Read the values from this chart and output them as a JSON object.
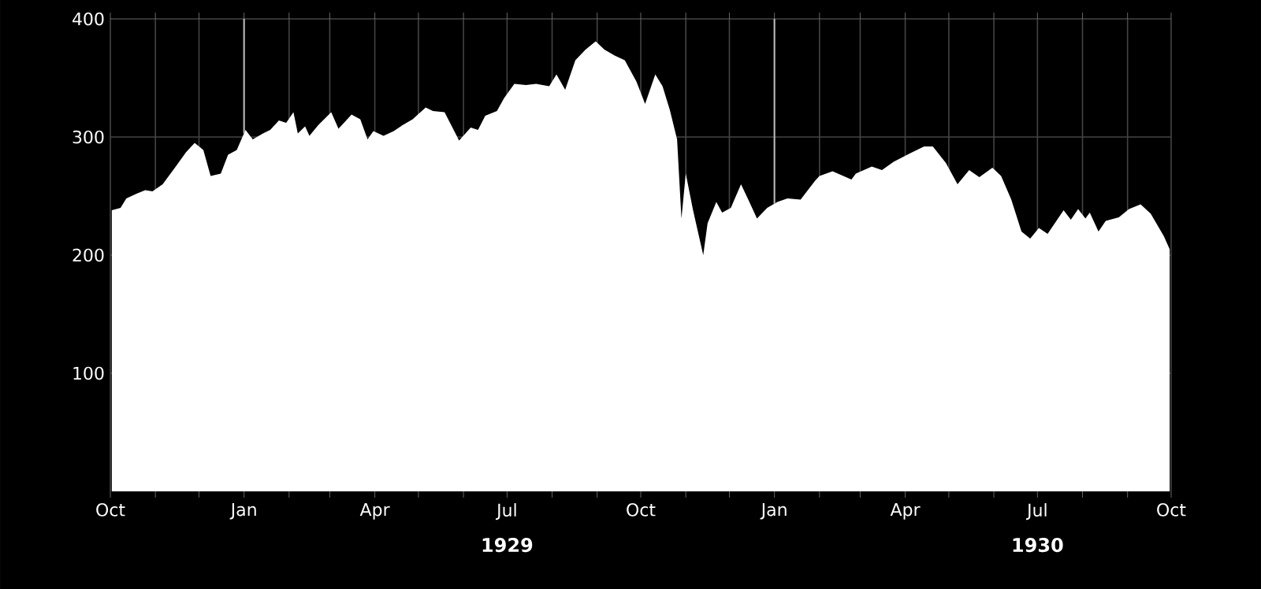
{
  "chart_data": {
    "type": "area",
    "color": "#ffffff",
    "xlim": [
      "1928-10-01",
      "1930-10-01"
    ],
    "ylim": [
      0,
      400
    ],
    "xticks": [
      {
        "value": "1928-10-01",
        "label": "Oct"
      },
      {
        "value": "1928-11-01",
        "label": null
      },
      {
        "value": "1928-12-01",
        "label": null
      },
      {
        "value": "1929-01-01",
        "label": "Jan"
      },
      {
        "value": "1929-02-01",
        "label": null
      },
      {
        "value": "1929-03-01",
        "label": null
      },
      {
        "value": "1929-04-01",
        "label": "Apr"
      },
      {
        "value": "1929-05-01",
        "label": null
      },
      {
        "value": "1929-06-01",
        "label": null
      },
      {
        "value": "1929-07-01",
        "label": "Jul"
      },
      {
        "value": "1929-08-01",
        "label": null
      },
      {
        "value": "1929-09-01",
        "label": null
      },
      {
        "value": "1929-10-01",
        "label": "Oct"
      },
      {
        "value": "1929-11-01",
        "label": null
      },
      {
        "value": "1929-12-01",
        "label": null
      },
      {
        "value": "1930-01-01",
        "label": "Jan"
      },
      {
        "value": "1930-02-01",
        "label": null
      },
      {
        "value": "1930-03-01",
        "label": null
      },
      {
        "value": "1930-04-01",
        "label": "Apr"
      },
      {
        "value": "1930-05-01",
        "label": null
      },
      {
        "value": "1930-06-01",
        "label": null
      },
      {
        "value": "1930-07-01",
        "label": "Jul"
      },
      {
        "value": "1930-08-01",
        "label": null
      },
      {
        "value": "1930-09-01",
        "label": null
      },
      {
        "value": "1930-10-01",
        "label": "Oct"
      }
    ],
    "yticks": [
      100,
      200,
      300,
      400
    ],
    "grid": true,
    "ref_lines": [
      {
        "axis": "x",
        "value": "1929-01-01",
        "color": "#bbbbbb"
      },
      {
        "axis": "x",
        "value": "1930-01-01",
        "color": "#bbbbbb"
      }
    ],
    "annotations": [
      "1929",
      "1930"
    ],
    "x": [
      "1928-10-02",
      "1928-10-08",
      "1928-10-12",
      "1928-10-19",
      "1928-10-25",
      "1928-10-30",
      "1928-11-06",
      "1928-11-15",
      "1928-11-22",
      "1928-11-28",
      "1928-12-04",
      "1928-12-09",
      "1928-12-16",
      "1928-12-21",
      "1928-12-27",
      "1929-01-02",
      "1929-01-07",
      "1929-01-14",
      "1929-01-19",
      "1929-01-25",
      "1929-01-30",
      "1929-02-04",
      "1929-02-07",
      "1929-02-12",
      "1929-02-15",
      "1929-02-21",
      "1929-03-02",
      "1929-03-07",
      "1929-03-16",
      "1929-03-22",
      "1929-03-27",
      "1929-03-31",
      "1929-04-07",
      "1929-04-14",
      "1929-04-20",
      "1929-04-27",
      "1929-05-06",
      "1929-05-11",
      "1929-05-19",
      "1929-05-24",
      "1929-05-29",
      "1929-06-06",
      "1929-06-11",
      "1929-06-16",
      "1929-06-24",
      "1929-06-29",
      "1929-07-06",
      "1929-07-14",
      "1929-07-21",
      "1929-07-30",
      "1929-08-04",
      "1929-08-10",
      "1929-08-17",
      "1929-08-24",
      "1929-08-31",
      "1929-09-06",
      "1929-09-13",
      "1929-09-20",
      "1929-09-28",
      "1929-10-04",
      "1929-10-11",
      "1929-10-16",
      "1929-10-21",
      "1929-10-26",
      "1929-10-29",
      "1929-11-01",
      "1929-11-06",
      "1929-11-13",
      "1929-11-16",
      "1929-11-22",
      "1929-11-26",
      "1929-12-02",
      "1929-12-09",
      "1929-12-14",
      "1929-12-20",
      "1929-12-27",
      "1930-01-03",
      "1930-01-10",
      "1930-01-19",
      "1930-01-29",
      "1930-02-01",
      "1930-02-10",
      "1930-02-23",
      "1930-02-26",
      "1930-03-09",
      "1930-03-16",
      "1930-03-24",
      "1930-04-04",
      "1930-04-14",
      "1930-04-20",
      "1930-04-29",
      "1930-05-07",
      "1930-05-15",
      "1930-05-22",
      "1930-05-31",
      "1930-06-06",
      "1930-06-13",
      "1930-06-20",
      "1930-06-26",
      "1930-07-02",
      "1930-07-08",
      "1930-07-19",
      "1930-07-24",
      "1930-07-29",
      "1930-08-03",
      "1930-08-06",
      "1930-08-12",
      "1930-08-17",
      "1930-08-26",
      "1930-09-02",
      "1930-09-10",
      "1930-09-17",
      "1930-09-26",
      "1930-09-30"
    ],
    "values": [
      238,
      240,
      248,
      252,
      255,
      254,
      260,
      275,
      287,
      295,
      289,
      267,
      269,
      285,
      289,
      306,
      298,
      303,
      306,
      314,
      312,
      321,
      303,
      309,
      301,
      310,
      321,
      307,
      319,
      315,
      298,
      305,
      301,
      305,
      310,
      315,
      325,
      322,
      321,
      309,
      297,
      308,
      306,
      318,
      322,
      333,
      345,
      344,
      345,
      343,
      353,
      340,
      365,
      374,
      381,
      374,
      369,
      365,
      347,
      328,
      353,
      343,
      323,
      298,
      231,
      269,
      238,
      200,
      227,
      245,
      236,
      240,
      260,
      247,
      231,
      240,
      245,
      248,
      247,
      263,
      267,
      271,
      264,
      269,
      275,
      272,
      279,
      286,
      292,
      292,
      278,
      260,
      272,
      266,
      274,
      267,
      247,
      220,
      214,
      223,
      218,
      238,
      230,
      239,
      231,
      236,
      220,
      229,
      232,
      239,
      243,
      235,
      216,
      205
    ]
  }
}
